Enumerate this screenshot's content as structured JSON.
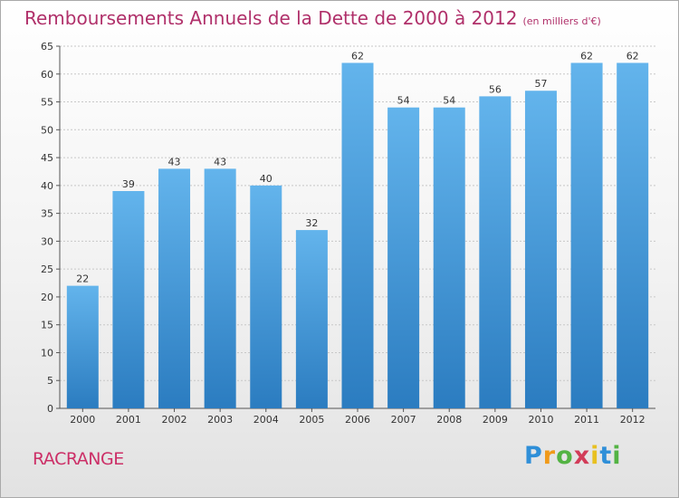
{
  "title": "Remboursements Annuels de la Dette de 2000 à 2012",
  "title_unit": "(en milliers d'€)",
  "commune": "RACRANGE",
  "logo": {
    "letters": [
      "P",
      "r",
      "o",
      "x",
      "i",
      "t",
      "i"
    ],
    "colors": [
      "#2f8fd8",
      "#f09a1a",
      "#53b343",
      "#d23c58",
      "#e8c020",
      "#2f8fd8",
      "#53b343"
    ]
  },
  "colors": {
    "bar_light": "#63b4ec",
    "bar_dark": "#2b7cc0",
    "title": "#b0306a",
    "axis": "#555555",
    "grid": "#c8c8c8"
  },
  "chart_data": {
    "type": "bar",
    "title": "Remboursements Annuels de la Dette de 2000 à 2012",
    "categories": [
      "2000",
      "2001",
      "2002",
      "2003",
      "2004",
      "2005",
      "2006",
      "2007",
      "2008",
      "2009",
      "2010",
      "2011",
      "2012"
    ],
    "values": [
      22,
      39,
      43,
      43,
      40,
      32,
      62,
      54,
      54,
      56,
      57,
      62,
      62
    ],
    "ylim": [
      0,
      65
    ],
    "yticks": [
      0,
      5,
      10,
      15,
      20,
      25,
      30,
      35,
      40,
      45,
      50,
      55,
      60,
      65
    ],
    "grid": true,
    "xlabel": "",
    "ylabel": ""
  }
}
